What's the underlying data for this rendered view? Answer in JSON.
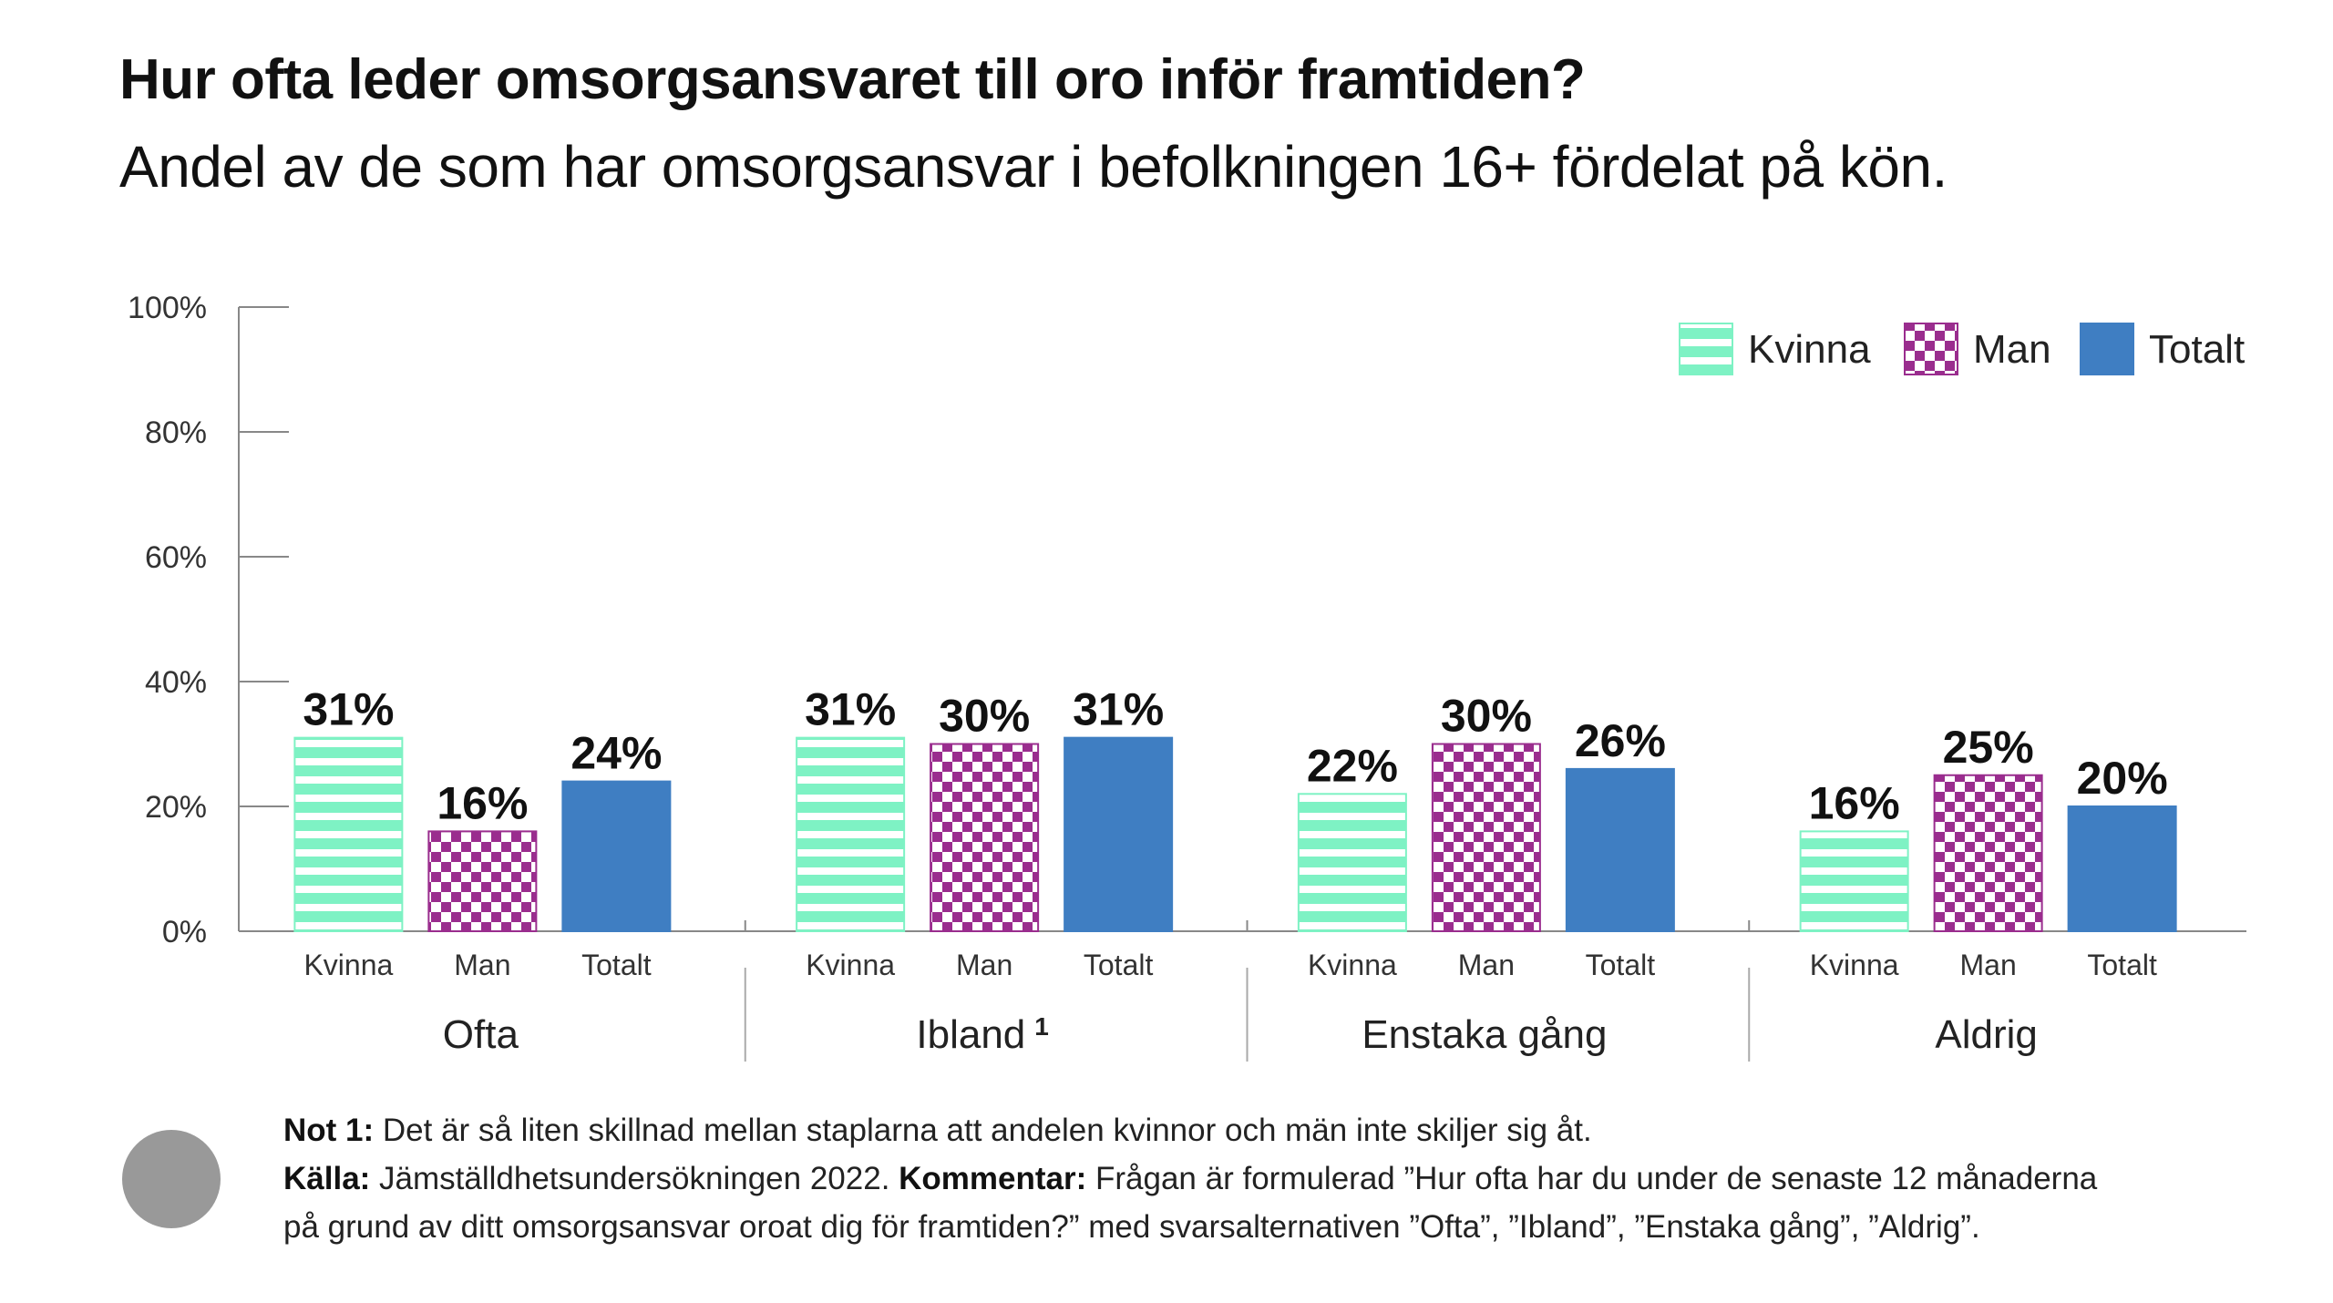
{
  "title": "Hur ofta leder omsorgsansvaret till oro inför framtiden?",
  "subtitle": "Andel av de som har omsorgsansvar i befolkningen 16+ fördelat på kön.",
  "notes": {
    "note_label": "Not 1:",
    "note_text": " Det är så liten skillnad mellan staplarna att andelen kvinnor och män inte skiljer sig åt.",
    "source_label": "Källa:",
    "source_text": " Jämställdhetsundersökningen 2022. ",
    "comment_label": "Kommentar:",
    "comment_text_1": " Frågan är formulerad ”Hur ofta har du under de senaste 12 månaderna",
    "comment_text_2": "på grund av ditt omsorgsansvar oroat dig för framtiden?” med svarsalternativen ”Ofta”, ”Ibland”, ”Enstaka gång”, ”Aldrig”."
  },
  "colors": {
    "kvinna": "#7ef2c4",
    "kvinna_stripe": "#ffffff",
    "man": "#9a2d8e",
    "man_light": "#ffffff",
    "totalt": "#3f7ec2",
    "axis": "#888888"
  },
  "chart_data": {
    "type": "bar",
    "ylim": [
      0,
      100
    ],
    "yticks": [
      "0%",
      "20%",
      "40%",
      "60%",
      "80%",
      "100%"
    ],
    "groups": [
      {
        "name": "Ofta",
        "footnote": ""
      },
      {
        "name": "Ibland",
        "footnote": "1"
      },
      {
        "name": "Enstaka gång",
        "footnote": ""
      },
      {
        "name": "Aldrig",
        "footnote": ""
      }
    ],
    "series": [
      {
        "name": "Kvinna",
        "values": [
          31,
          31,
          22,
          16
        ],
        "labels": [
          "31%",
          "31%",
          "22%",
          "16%"
        ]
      },
      {
        "name": "Man",
        "values": [
          16,
          30,
          30,
          25
        ],
        "labels": [
          "16%",
          "30%",
          "30%",
          "25%"
        ]
      },
      {
        "name": "Totalt",
        "values": [
          24,
          31,
          26,
          20
        ],
        "labels": [
          "24%",
          "31%",
          "26%",
          "20%"
        ]
      }
    ],
    "legend": {
      "position": "top-right",
      "items": [
        "Kvinna",
        "Man",
        "Totalt"
      ]
    },
    "grid": false
  }
}
